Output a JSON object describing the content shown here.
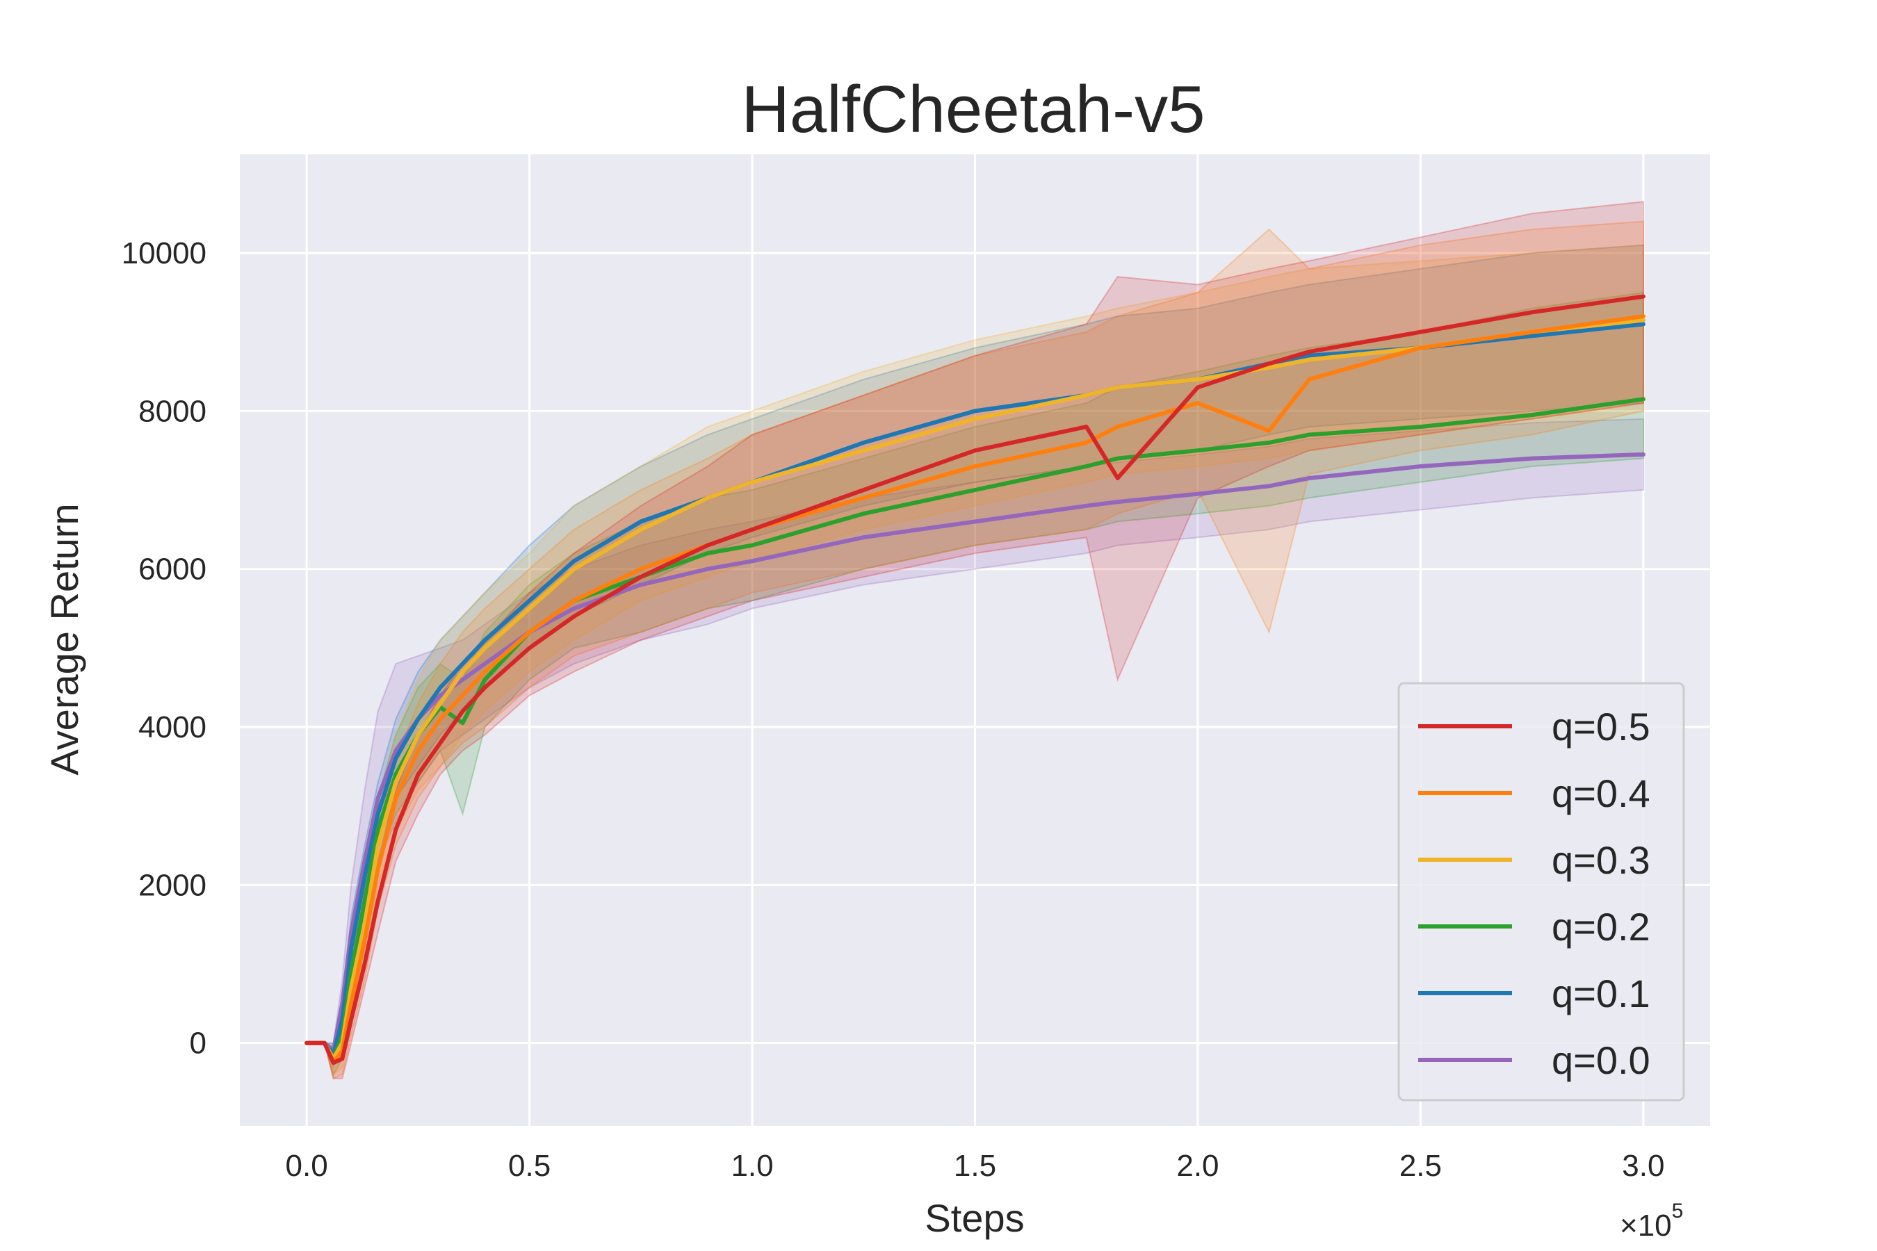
{
  "chart_data": {
    "type": "line",
    "title": "HalfCheetah-v5",
    "xlabel": "Steps",
    "ylabel": "Average Return",
    "x_multiplier_label": "×10",
    "x_multiplier_exponent": "5",
    "xlim": [
      -0.15,
      3.15
    ],
    "ylim": [
      -1050,
      11250
    ],
    "x_ticks": [
      0.0,
      0.5,
      1.0,
      1.5,
      2.0,
      2.5,
      3.0
    ],
    "x_tick_labels": [
      "0.0",
      "0.5",
      "1.0",
      "1.5",
      "2.0",
      "2.5",
      "3.0"
    ],
    "y_ticks": [
      0,
      2000,
      4000,
      6000,
      8000,
      10000
    ],
    "y_tick_labels": [
      "0",
      "2000",
      "4000",
      "6000",
      "8000",
      "10000"
    ],
    "grid": true,
    "background": "#eaeaf2",
    "legend_position": "lower-right",
    "x": [
      0.0,
      0.04,
      0.06,
      0.08,
      0.1,
      0.13,
      0.16,
      0.2,
      0.25,
      0.3,
      0.35,
      0.4,
      0.5,
      0.6,
      0.75,
      0.9,
      1.0,
      1.25,
      1.5,
      1.75,
      1.82,
      2.0,
      2.16,
      2.25,
      2.5,
      2.75,
      3.0
    ],
    "series": [
      {
        "name": "q=0.5",
        "color": "#d62728",
        "values": [
          0,
          0,
          -250,
          -200,
          300,
          1000,
          1800,
          2700,
          3400,
          3800,
          4200,
          4500,
          5000,
          5400,
          5900,
          6300,
          6500,
          7000,
          7500,
          7800,
          7150,
          8300,
          8600,
          8750,
          9000,
          9250,
          9450
        ],
        "upper": [
          0,
          0,
          -100,
          100,
          600,
          1400,
          2300,
          3200,
          3900,
          4400,
          4800,
          5100,
          5700,
          6200,
          6800,
          7300,
          7700,
          8200,
          8700,
          9100,
          9700,
          9600,
          9800,
          9900,
          10200,
          10500,
          10650
        ],
        "lower": [
          0,
          0,
          -450,
          -450,
          0,
          700,
          1400,
          2300,
          2900,
          3400,
          3700,
          3900,
          4400,
          4700,
          5100,
          5400,
          5600,
          5900,
          6200,
          6400,
          4600,
          6900,
          7300,
          7500,
          7700,
          7900,
          8100
        ]
      },
      {
        "name": "q=0.4",
        "color": "#ff7f0e",
        "values": [
          0,
          0,
          -250,
          -100,
          500,
          1300,
          2200,
          3100,
          3700,
          4100,
          4400,
          4700,
          5200,
          5600,
          6000,
          6300,
          6500,
          6900,
          7300,
          7600,
          7800,
          8100,
          7750,
          8400,
          8800,
          9000,
          9200
        ],
        "upper": [
          0,
          0,
          -50,
          200,
          900,
          1800,
          2700,
          3600,
          4300,
          4800,
          5200,
          5500,
          6000,
          6500,
          7000,
          7400,
          7700,
          8200,
          8700,
          9000,
          9200,
          9500,
          10300,
          9800,
          10100,
          10300,
          10400
        ],
        "lower": [
          0,
          0,
          -450,
          -400,
          100,
          800,
          1700,
          2500,
          3100,
          3500,
          3800,
          4000,
          4500,
          4900,
          5200,
          5500,
          5700,
          6000,
          6300,
          6500,
          6700,
          7000,
          5200,
          7200,
          7500,
          7700,
          8000
        ]
      },
      {
        "name": "q=0.3",
        "color": "#f0b429",
        "values": [
          0,
          0,
          -200,
          0,
          700,
          1500,
          2500,
          3300,
          3900,
          4300,
          4700,
          5000,
          5500,
          6000,
          6500,
          6900,
          7100,
          7500,
          7900,
          8200,
          8300,
          8400,
          8550,
          8650,
          8800,
          9000,
          9150
        ],
        "upper": [
          0,
          0,
          -50,
          300,
          1100,
          2000,
          3000,
          3900,
          4600,
          5100,
          5400,
          5700,
          6200,
          6800,
          7300,
          7800,
          8000,
          8500,
          8900,
          9200,
          9300,
          9500,
          9700,
          9800,
          9900,
          10000,
          10100
        ],
        "lower": [
          0,
          0,
          -400,
          -300,
          300,
          1000,
          2000,
          2700,
          3200,
          3500,
          3900,
          4200,
          4700,
          5100,
          5600,
          5900,
          6100,
          6500,
          6800,
          7100,
          7200,
          7300,
          7400,
          7500,
          7700,
          7900,
          8100
        ]
      },
      {
        "name": "q=0.2",
        "color": "#2ca02c",
        "values": [
          0,
          0,
          -200,
          100,
          900,
          1800,
          2700,
          3400,
          3900,
          4250,
          4050,
          4600,
          5200,
          5600,
          5900,
          6200,
          6300,
          6700,
          7000,
          7300,
          7400,
          7500,
          7600,
          7700,
          7800,
          7950,
          8150
        ],
        "upper": [
          0,
          0,
          -50,
          400,
          1300,
          2200,
          3100,
          3900,
          4500,
          4800,
          4600,
          5200,
          5800,
          6200,
          6600,
          6900,
          7000,
          7400,
          7800,
          8100,
          8300,
          8500,
          8700,
          8800,
          9000,
          9300,
          9500
        ],
        "lower": [
          0,
          0,
          -400,
          -200,
          500,
          1400,
          2300,
          2900,
          3300,
          3700,
          2900,
          4000,
          4600,
          5000,
          5200,
          5500,
          5600,
          6000,
          6300,
          6500,
          6600,
          6700,
          6800,
          6900,
          7100,
          7300,
          7400
        ]
      },
      {
        "name": "q=0.1",
        "color": "#1f77b4",
        "values": [
          0,
          0,
          -150,
          300,
          1200,
          2100,
          2900,
          3600,
          4100,
          4500,
          4800,
          5100,
          5600,
          6100,
          6600,
          6900,
          7100,
          7600,
          8000,
          8200,
          8300,
          8400,
          8600,
          8700,
          8800,
          8950,
          9100
        ],
        "upper": [
          0,
          0,
          0,
          600,
          1600,
          2500,
          3300,
          4100,
          4700,
          5100,
          5400,
          5700,
          6300,
          6800,
          7300,
          7700,
          7900,
          8400,
          8800,
          9100,
          9200,
          9300,
          9500,
          9600,
          9800,
          10000,
          10100
        ],
        "lower": [
          0,
          0,
          -300,
          0,
          800,
          1700,
          2500,
          3100,
          3500,
          3900,
          4200,
          4500,
          5000,
          5400,
          5800,
          6200,
          6400,
          6800,
          7100,
          7300,
          7400,
          7500,
          7700,
          7800,
          7900,
          8000,
          8100
        ]
      },
      {
        "name": "q=0.0",
        "color": "#9467bd",
        "values": [
          0,
          0,
          -100,
          500,
          1400,
          2300,
          3100,
          3700,
          4100,
          4400,
          4600,
          4800,
          5200,
          5500,
          5800,
          6000,
          6100,
          6400,
          6600,
          6800,
          6850,
          6950,
          7050,
          7150,
          7300,
          7400,
          7450
        ],
        "upper": [
          0,
          0,
          0,
          800,
          2000,
          3200,
          4200,
          4800,
          4900,
          5000,
          5100,
          5300,
          5700,
          6000,
          6300,
          6500,
          6600,
          6900,
          7100,
          7300,
          7350,
          7450,
          7550,
          7650,
          7750,
          7850,
          7900
        ],
        "lower": [
          0,
          0,
          -250,
          200,
          900,
          1600,
          2300,
          2800,
          3300,
          3700,
          3900,
          4100,
          4500,
          4800,
          5100,
          5300,
          5500,
          5800,
          6000,
          6200,
          6300,
          6400,
          6500,
          6600,
          6750,
          6900,
          7000
        ]
      }
    ]
  }
}
